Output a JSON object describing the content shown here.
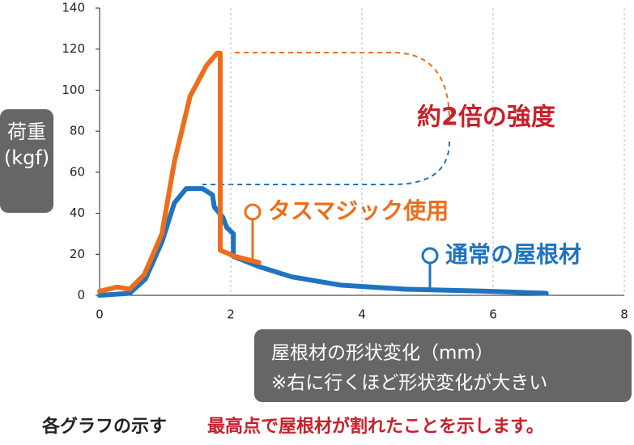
{
  "chart_data": {
    "type": "line",
    "y_label": [
      "荷重",
      "(kgf)"
    ],
    "x_label": [
      "屋根材の形状変化（mm）",
      "※右に行くほど形状変化が大きい"
    ],
    "annotation": "約2倍の強度",
    "footer": [
      "各グラフの示す",
      "最高点で屋根材が割れたことを示します。"
    ],
    "xlim": [
      0,
      8
    ],
    "xticks": [
      0,
      2,
      4,
      6,
      8
    ],
    "ylim": [
      0,
      140
    ],
    "yticks": [
      0,
      20,
      40,
      60,
      80,
      100,
      120,
      140
    ],
    "grid": true,
    "series": [
      {
        "name": "タスマジック使用",
        "color": "#ee6d1a",
        "x": [
          0,
          0.27,
          0.46,
          0.68,
          0.95,
          1.14,
          1.38,
          1.63,
          1.79,
          1.84,
          1.84,
          2.06,
          2.43
        ],
        "values": [
          2,
          4,
          3,
          10,
          30,
          65,
          97,
          112,
          118,
          118,
          22,
          19,
          16
        ]
      },
      {
        "name": "通常の屋根材",
        "color": "#1f73c0",
        "x": [
          0,
          0.46,
          0.7,
          0.95,
          1.14,
          1.32,
          1.57,
          1.72,
          1.75,
          1.88,
          1.94,
          2.04,
          2.04,
          2.43,
          2.93,
          3.67,
          4.65,
          5.89,
          6.81
        ],
        "values": [
          0,
          1,
          8,
          26,
          45,
          52,
          52,
          49,
          43,
          38,
          33,
          30,
          19,
          14,
          9,
          5,
          3,
          2,
          1
        ]
      }
    ]
  }
}
